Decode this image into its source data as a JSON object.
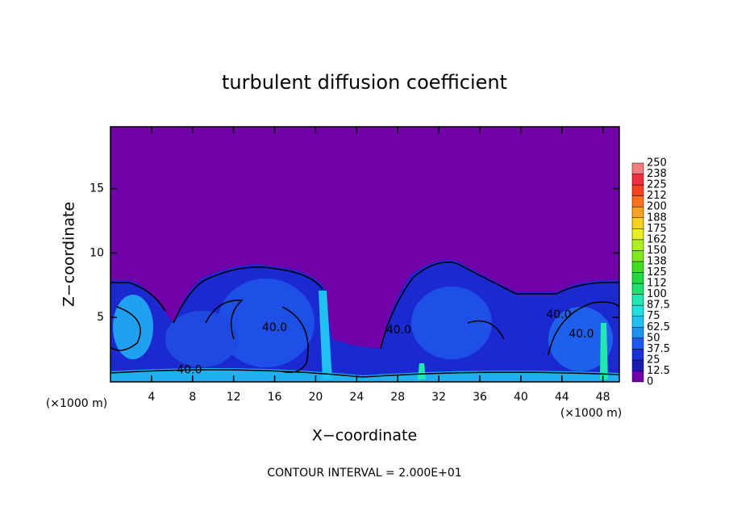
{
  "chart_data": {
    "type": "contour",
    "title": "turbulent diffusion coefficient",
    "xlabel": "X−coordinate",
    "ylabel": "Z−coordinate",
    "x_unit": "(×1000 m)",
    "footnote": "CONTOUR INTERVAL = 2.000E+01",
    "xlim": [
      0,
      49.6
    ],
    "xticks": [
      4,
      8,
      12,
      16,
      20,
      24,
      28,
      32,
      36,
      40,
      44,
      48
    ],
    "ylim": [
      0,
      19.8
    ],
    "yticks": [
      5,
      10,
      15
    ],
    "background_color": "#7000a8",
    "annotations": [
      {
        "text": "40.0",
        "x": 7.7,
        "y": 0.9
      },
      {
        "text": "40.0",
        "x": 16,
        "y": 4.2
      },
      {
        "text": "40.0",
        "x": 28.1,
        "y": 4.0
      },
      {
        "text": "40.0",
        "x": 43.7,
        "y": 5.2
      },
      {
        "text": "40.0",
        "x": 45.9,
        "y": 3.7
      }
    ],
    "colorbar": {
      "levels": [
        0,
        12.5,
        25,
        37.5,
        50,
        62.5,
        75,
        87.5,
        100,
        112,
        125,
        138,
        150,
        162,
        175,
        188,
        200,
        212,
        225,
        238,
        250
      ],
      "colors": [
        "#7000a8",
        "#1c1cb0",
        "#1a30d8",
        "#1e5af0",
        "#1e90f0",
        "#20c0f0",
        "#20e0e0",
        "#20e8b0",
        "#20e070",
        "#20d840",
        "#40e020",
        "#80e820",
        "#b0f020",
        "#e8f020",
        "#f8d020",
        "#f8a020",
        "#f87020",
        "#f84020",
        "#f03040",
        "#f08080"
      ]
    }
  }
}
